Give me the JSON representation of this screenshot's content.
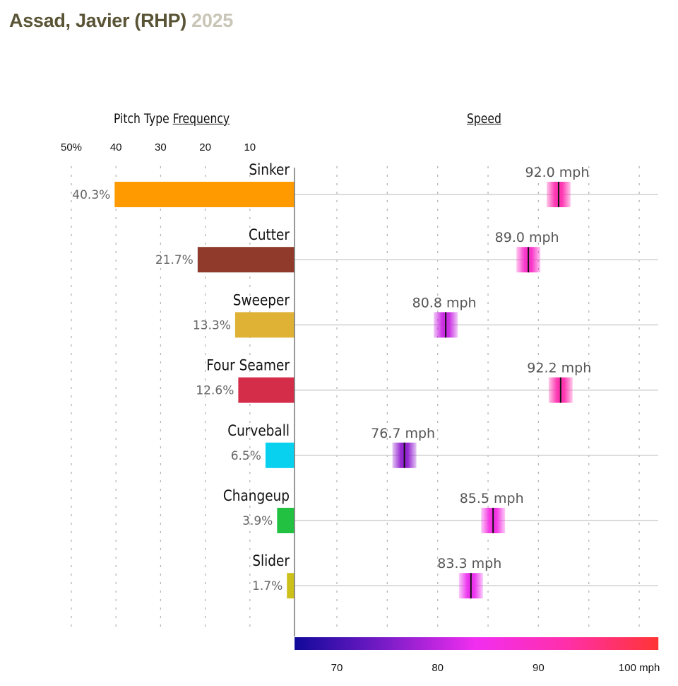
{
  "header": {
    "player": "Assad, Javier (RHP)",
    "season": "2025"
  },
  "chart_data": {
    "type": "bar",
    "title": "Assad, Javier (RHP) 2025",
    "frequency_panel": {
      "title_prefix": "Pitch Type ",
      "title_underlined": "Frequency",
      "xlim": [
        0,
        50
      ],
      "ticks": [
        50,
        40,
        30,
        20,
        10
      ],
      "tick_labels": [
        "50%",
        "40",
        "30",
        "20",
        "10"
      ],
      "grid": "dotted vertical"
    },
    "speed_panel": {
      "title": "Speed",
      "xlim": [
        65.8,
        101.9
      ],
      "ticks": [
        70,
        75,
        80,
        85,
        90,
        95,
        100
      ],
      "tick_labels": [
        {
          "value": 70,
          "label": "70"
        },
        {
          "value": 80,
          "label": "80"
        },
        {
          "value": 90,
          "label": "90"
        },
        {
          "value": 100,
          "label": "100 mph"
        }
      ],
      "colorscale": [
        "#10099a",
        "#7a1cc8",
        "#f22ef0",
        "#ff2fa8",
        "#ff3434"
      ],
      "grid": "dotted vertical"
    },
    "categories": [
      "Sinker",
      "Cutter",
      "Sweeper",
      "Four Seamer",
      "Curveball",
      "Changeup",
      "Slider"
    ],
    "series": [
      {
        "name": "Frequency (%)",
        "values": [
          40.3,
          21.7,
          13.3,
          12.6,
          6.5,
          3.9,
          1.7
        ]
      },
      {
        "name": "Speed (mph)",
        "values": [
          92.0,
          89.0,
          80.8,
          92.2,
          76.7,
          85.5,
          83.3
        ]
      }
    ],
    "pitches": [
      {
        "name": "Sinker",
        "freq": 40.3,
        "freq_label": "40.3%",
        "speed": 92.0,
        "speed_label": "92.0 mph",
        "color": "#ff9a00"
      },
      {
        "name": "Cutter",
        "freq": 21.7,
        "freq_label": "21.7%",
        "speed": 89.0,
        "speed_label": "89.0 mph",
        "color": "#8f3a2a"
      },
      {
        "name": "Sweeper",
        "freq": 13.3,
        "freq_label": "13.3%",
        "speed": 80.8,
        "speed_label": "80.8 mph",
        "color": "#dfb135"
      },
      {
        "name": "Four Seamer",
        "freq": 12.6,
        "freq_label": "12.6%",
        "speed": 92.2,
        "speed_label": "92.2 mph",
        "color": "#d42d4a"
      },
      {
        "name": "Curveball",
        "freq": 6.5,
        "freq_label": "6.5%",
        "speed": 76.7,
        "speed_label": "76.7 mph",
        "color": "#08d0ef"
      },
      {
        "name": "Changeup",
        "freq": 3.9,
        "freq_label": "3.9%",
        "speed": 85.5,
        "speed_label": "85.5 mph",
        "color": "#22c142"
      },
      {
        "name": "Slider",
        "freq": 1.7,
        "freq_label": "1.7%",
        "speed": 83.3,
        "speed_label": "83.3 mph",
        "color": "#cdc019"
      }
    ]
  }
}
